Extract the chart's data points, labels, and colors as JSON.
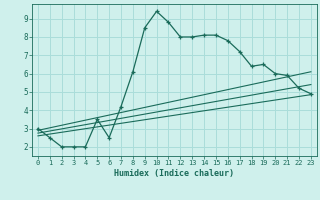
{
  "xlabel": "Humidex (Indice chaleur)",
  "background_color": "#cff0ec",
  "grid_color": "#aaddda",
  "line_color": "#1a6b5a",
  "xlim": [
    -0.5,
    23.5
  ],
  "ylim": [
    1.5,
    9.8
  ],
  "xticks": [
    0,
    1,
    2,
    3,
    4,
    5,
    6,
    7,
    8,
    9,
    10,
    11,
    12,
    13,
    14,
    15,
    16,
    17,
    18,
    19,
    20,
    21,
    22,
    23
  ],
  "yticks": [
    2,
    3,
    4,
    5,
    6,
    7,
    8,
    9
  ],
  "main_line": {
    "x": [
      0,
      1,
      2,
      3,
      4,
      5,
      6,
      7,
      8,
      9,
      10,
      11,
      12,
      13,
      14,
      15,
      16,
      17,
      18,
      19,
      20,
      21,
      22,
      23
    ],
    "y": [
      3.0,
      2.5,
      2.0,
      2.0,
      2.0,
      3.5,
      2.5,
      4.2,
      6.1,
      8.5,
      9.4,
      8.8,
      8.0,
      8.0,
      8.1,
      8.1,
      7.8,
      7.2,
      6.4,
      6.5,
      6.0,
      5.9,
      5.2,
      4.9
    ]
  },
  "linear_lines": [
    {
      "x": [
        0,
        23
      ],
      "y": [
        2.9,
        6.1
      ]
    },
    {
      "x": [
        0,
        23
      ],
      "y": [
        2.75,
        5.4
      ]
    },
    {
      "x": [
        0,
        23
      ],
      "y": [
        2.6,
        4.85
      ]
    }
  ]
}
